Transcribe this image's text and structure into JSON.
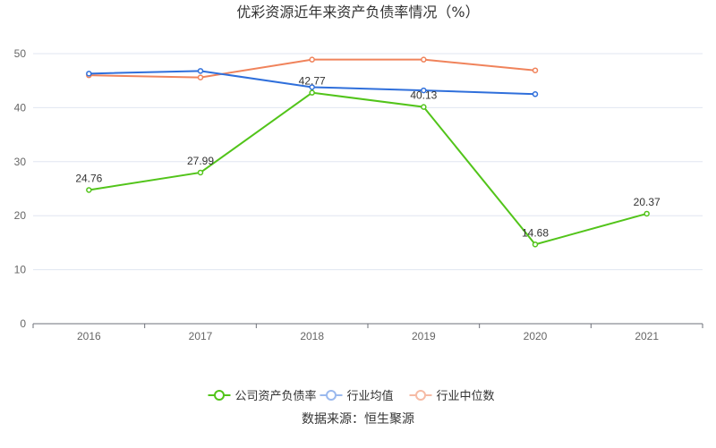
{
  "chart_data": {
    "type": "line",
    "title": "优彩资源近年来资产负债率情况（%）",
    "categories": [
      "2016",
      "2017",
      "2018",
      "2019",
      "2020",
      "2021"
    ],
    "ylim": [
      0,
      50
    ],
    "yticks": [
      0,
      10,
      20,
      30,
      40,
      50
    ],
    "grid": true,
    "legend_position": "bottom",
    "series": [
      {
        "name": "公司资产负债率",
        "color": "#52c41a",
        "values": [
          24.76,
          27.99,
          42.77,
          40.13,
          14.68,
          20.37
        ],
        "show_labels": true
      },
      {
        "name": "行业均值",
        "color": "#2f6fdb",
        "values": [
          46.3,
          46.8,
          43.8,
          43.2,
          42.5,
          null
        ],
        "show_labels": false
      },
      {
        "name": "行业中位数",
        "color": "#f0835b",
        "values": [
          46.0,
          45.6,
          48.9,
          48.9,
          46.9,
          null
        ],
        "show_labels": false
      }
    ]
  },
  "source_label": "数据来源：恒生聚源"
}
